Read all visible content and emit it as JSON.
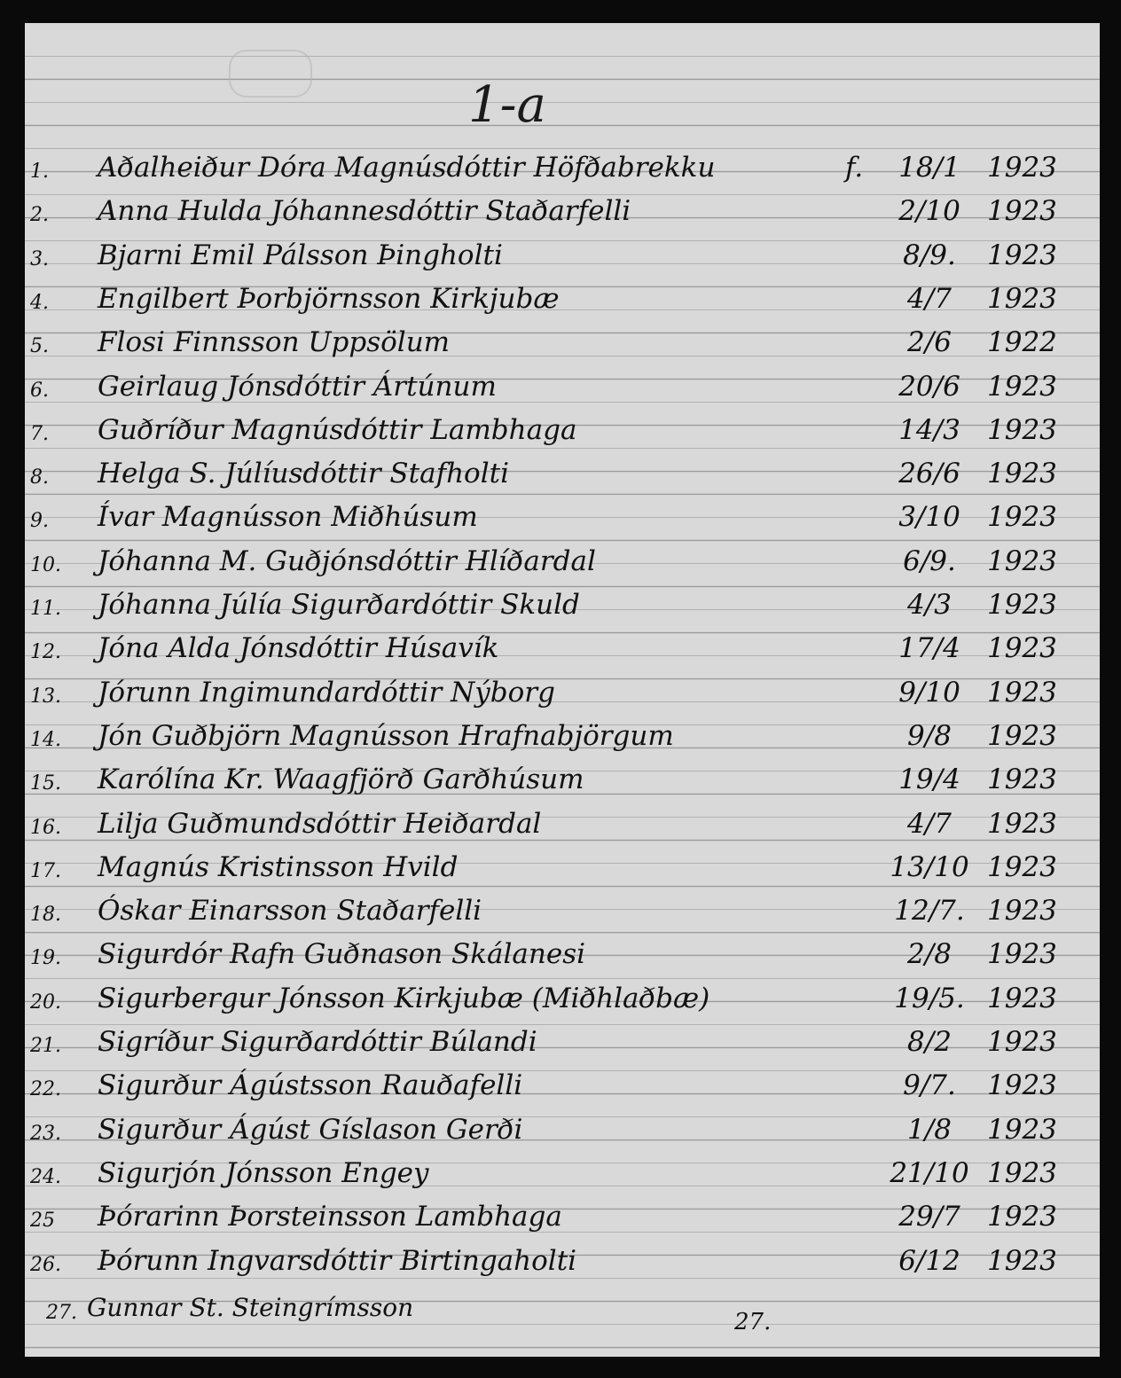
{
  "heading": "1-a",
  "entries": [
    {
      "num": "1.",
      "name": "Aðalheiður Dóra Magnúsdóttir Höfðabrekku",
      "prefix": "f.",
      "date": "18/1",
      "year": "1923"
    },
    {
      "num": "2.",
      "name": "Anna Hulda Jóhannesdóttir Staðarfelli",
      "date": "2/10",
      "year": "1923"
    },
    {
      "num": "3.",
      "name": "Bjarni Emil Pálsson Þingholti",
      "date": "8/9.",
      "year": "1923"
    },
    {
      "num": "4.",
      "name": "Engilbert Þorbjörnsson Kirkjubæ",
      "date": "4/7",
      "year": "1923"
    },
    {
      "num": "5.",
      "name": "Flosi Finnsson Uppsölum",
      "date": "2/6",
      "year": "1922"
    },
    {
      "num": "6.",
      "name": "Geirlaug Jónsdóttir Ártúnum",
      "date": "20/6",
      "year": "1923"
    },
    {
      "num": "7.",
      "name": "Guðríður Magnúsdóttir Lambhaga",
      "date": "14/3",
      "year": "1923"
    },
    {
      "num": "8.",
      "name": "Helga S. Júlíusdóttir Stafholti",
      "date": "26/6",
      "year": "1923"
    },
    {
      "num": "9.",
      "name": "Ívar Magnússon Miðhúsum",
      "date": "3/10",
      "year": "1923"
    },
    {
      "num": "10.",
      "name": "Jóhanna M. Guðjónsdóttir Hlíðardal",
      "date": "6/9.",
      "year": "1923"
    },
    {
      "num": "11.",
      "name": "Jóhanna Júlía Sigurðardóttir Skuld",
      "date": "4/3",
      "year": "1923"
    },
    {
      "num": "12.",
      "name": "Jóna Alda Jónsdóttir Húsavík",
      "date": "17/4",
      "year": "1923"
    },
    {
      "num": "13.",
      "name": "Jórunn Ingimundardóttir Nýborg",
      "date": "9/10",
      "year": "1923"
    },
    {
      "num": "14.",
      "name": "Jón Guðbjörn Magnússon Hrafnabjörgum",
      "date": "9/8",
      "year": "1923"
    },
    {
      "num": "15.",
      "name": "Karólína Kr. Waagfjörð Garðhúsum",
      "date": "19/4",
      "year": "1923"
    },
    {
      "num": "16.",
      "name": "Lilja Guðmundsdóttir Heiðardal",
      "date": "4/7",
      "year": "1923"
    },
    {
      "num": "17.",
      "name": "Magnús Kristinsson Hvild",
      "date": "13/10",
      "year": "1923"
    },
    {
      "num": "18.",
      "name": "Óskar Einarsson Staðarfelli",
      "date": "12/7.",
      "year": "1923"
    },
    {
      "num": "19.",
      "name": "Sigurdór Rafn Guðnason Skálanesi",
      "date": "2/8",
      "year": "1923"
    },
    {
      "num": "20.",
      "name": "Sigurbergur Jónsson Kirkjubæ (Miðhlaðbæ)",
      "date": "19/5.",
      "year": "1923"
    },
    {
      "num": "21.",
      "name": "Sigríður Sigurðardóttir Búlandi",
      "date": "8/2",
      "year": "1923"
    },
    {
      "num": "22.",
      "name": "Sigurður Ágústsson Rauðafelli",
      "date": "9/7.",
      "year": "1923"
    },
    {
      "num": "23.",
      "name": "Sigurður Ágúst Gíslason Gerði",
      "date": "1/8",
      "year": "1923"
    },
    {
      "num": "24.",
      "name": "Sigurjón Jónsson Engey",
      "date": "21/10",
      "year": "1923"
    },
    {
      "num": "25",
      "name": "Þórarinn Þorsteinsson Lambhaga",
      "date": "29/7",
      "year": "1923"
    },
    {
      "num": "26.",
      "name": "Þórunn Ingvarsdóttir Birtingaholti",
      "date": "6/12",
      "year": "1923"
    }
  ],
  "extra_entry": {
    "num": "27.",
    "name": "Gunnar St. Steingrímsson"
  },
  "total": "27."
}
